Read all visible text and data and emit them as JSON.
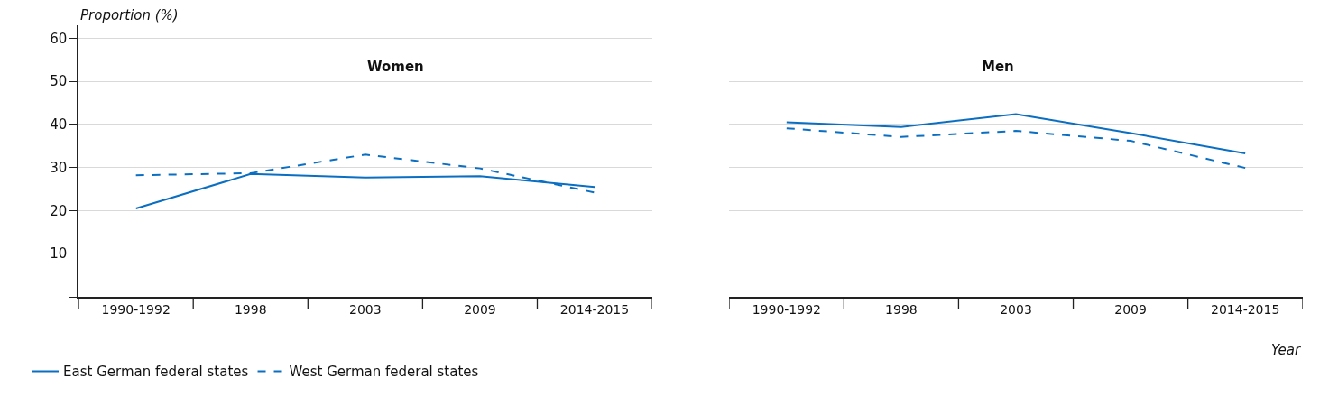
{
  "chart_data": [
    {
      "type": "line",
      "title": "Women",
      "ylabel": "Proportion (%)",
      "categories": [
        "1990-1992",
        "1998",
        "2003",
        "2009",
        "2014-2015"
      ],
      "ylim": [
        0,
        63
      ],
      "yticks": [
        {
          "value": 0,
          "label": null
        },
        10,
        20,
        30,
        40,
        50,
        60
      ],
      "grid": "y",
      "legend": "bottom left",
      "marker": "none",
      "series": [
        {
          "name": "East German federal states",
          "color": "#0a6fc2",
          "line_style": "solid",
          "values": [
            20.5,
            28.5,
            27.7,
            28.0,
            25.5
          ]
        },
        {
          "name": "West German federal states",
          "color": "#0a6fc2",
          "line_style": "dashed",
          "values": [
            28.2,
            28.7,
            33.0,
            29.8,
            24.2
          ]
        }
      ]
    },
    {
      "type": "line",
      "title": "Men",
      "xlabel": "Year",
      "categories": [
        "1990-1992",
        "1998",
        "2003",
        "2009",
        "2014-2015"
      ],
      "ylim": [
        0,
        60
      ],
      "yticks": [
        {
          "value": 0,
          "label": null
        },
        10,
        20,
        30,
        40,
        50,
        60
      ],
      "grid": "y",
      "tick_labels": "x",
      "marker": "none",
      "series": [
        {
          "color": "#0a6fc2",
          "line_style": "solid",
          "values": [
            40.5,
            39.4,
            42.4,
            38.0,
            33.3
          ]
        },
        {
          "color": "#0a6fc2",
          "line_style": "dashed",
          "values": [
            39.1,
            37.1,
            38.5,
            36.2,
            29.9
          ]
        }
      ]
    }
  ]
}
